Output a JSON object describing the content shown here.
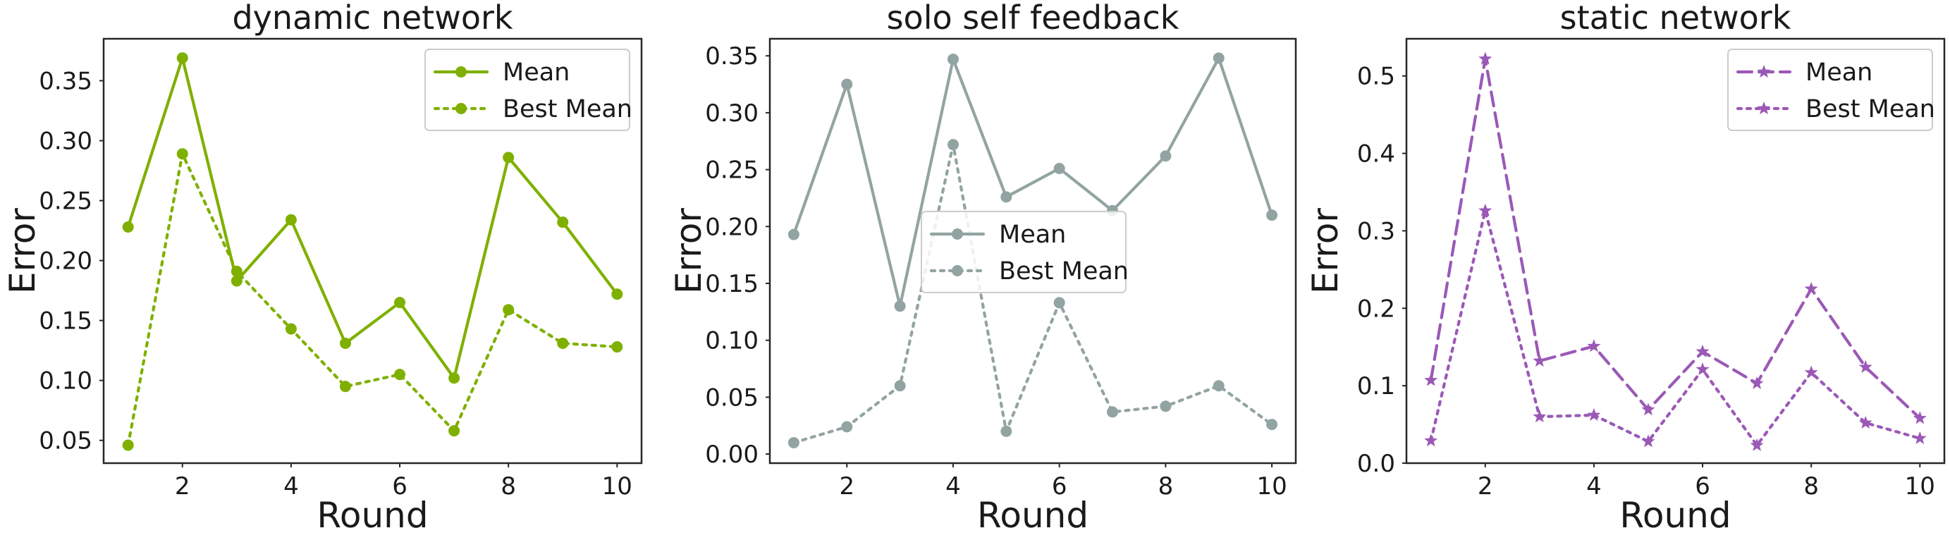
{
  "chart_data": [
    {
      "type": "line",
      "title": "dynamic network",
      "xlabel": "Round",
      "ylabel": "Error",
      "x": [
        1,
        2,
        3,
        4,
        5,
        6,
        7,
        8,
        9,
        10
      ],
      "xticks": [
        2,
        4,
        6,
        8,
        10
      ],
      "xlim": [
        0.55,
        10.45
      ],
      "ylim": [
        0.031,
        0.385
      ],
      "yticks": [
        0.05,
        0.1,
        0.15,
        0.2,
        0.25,
        0.3,
        0.35
      ],
      "ytick_labels": [
        "0.05",
        "0.10",
        "0.15",
        "0.20",
        "0.25",
        "0.30",
        "0.35"
      ],
      "color": "#7fb000",
      "marker": "circle",
      "legend_loc": "upper right",
      "grid": false,
      "series": [
        {
          "name": "Mean",
          "style": "solid",
          "values": [
            0.228,
            0.369,
            0.183,
            0.234,
            0.131,
            0.165,
            0.102,
            0.286,
            0.232,
            0.172
          ]
        },
        {
          "name": "Best Mean",
          "style": "dotted",
          "values": [
            0.046,
            0.289,
            0.191,
            0.143,
            0.095,
            0.105,
            0.058,
            0.159,
            0.131,
            0.128
          ]
        }
      ]
    },
    {
      "type": "line",
      "title": "solo self feedback",
      "xlabel": "Round",
      "ylabel": "Error",
      "x": [
        1,
        2,
        3,
        4,
        5,
        6,
        7,
        8,
        9,
        10
      ],
      "xticks": [
        2,
        4,
        6,
        8,
        10
      ],
      "xlim": [
        0.55,
        10.45
      ],
      "ylim": [
        -0.008,
        0.365
      ],
      "yticks": [
        0.0,
        0.05,
        0.1,
        0.15,
        0.2,
        0.25,
        0.3,
        0.35
      ],
      "ytick_labels": [
        "0.00",
        "0.05",
        "0.10",
        "0.15",
        "0.20",
        "0.25",
        "0.30",
        "0.35"
      ],
      "color": "#92a4a2",
      "marker": "circle",
      "legend_loc": "center",
      "grid": false,
      "series": [
        {
          "name": "Mean",
          "style": "solid",
          "values": [
            0.193,
            0.325,
            0.13,
            0.347,
            0.226,
            0.251,
            0.214,
            0.262,
            0.348,
            0.21
          ]
        },
        {
          "name": "Best Mean",
          "style": "dotted",
          "values": [
            0.01,
            0.024,
            0.06,
            0.272,
            0.02,
            0.133,
            0.037,
            0.042,
            0.06,
            0.026
          ]
        }
      ]
    },
    {
      "type": "line",
      "title": "static network",
      "xlabel": "Round",
      "ylabel": "Error",
      "x": [
        1,
        2,
        3,
        4,
        5,
        6,
        7,
        8,
        9,
        10
      ],
      "xticks": [
        2,
        4,
        6,
        8,
        10
      ],
      "xlim": [
        0.55,
        10.45
      ],
      "ylim": [
        0.0,
        0.548
      ],
      "yticks": [
        0.0,
        0.1,
        0.2,
        0.3,
        0.4,
        0.5
      ],
      "ytick_labels": [
        "0.0",
        "0.1",
        "0.2",
        "0.3",
        "0.4",
        "0.5"
      ],
      "color": "#9b59b6",
      "marker": "star",
      "legend_loc": "upper right",
      "grid": false,
      "series": [
        {
          "name": "Mean",
          "style": "dashed",
          "values": [
            0.107,
            0.522,
            0.132,
            0.151,
            0.069,
            0.144,
            0.103,
            0.225,
            0.124,
            0.058
          ]
        },
        {
          "name": "Best Mean",
          "style": "dotted",
          "values": [
            0.029,
            0.326,
            0.06,
            0.062,
            0.028,
            0.121,
            0.023,
            0.117,
            0.052,
            0.032
          ]
        }
      ]
    }
  ]
}
